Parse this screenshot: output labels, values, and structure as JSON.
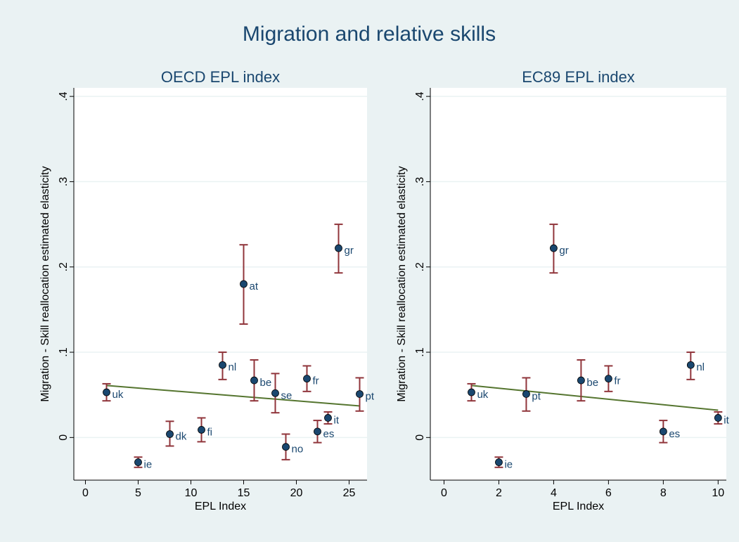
{
  "title": "Migration and relative skills",
  "chart_data": [
    {
      "type": "scatter",
      "subtitle": "OECD EPL index",
      "xlabel": "EPL Index",
      "ylabel": "Migration - Skill reallocation estimated elasticity",
      "x": [
        2,
        5,
        8,
        11,
        13,
        15,
        16,
        18,
        19,
        21,
        22,
        23,
        24,
        26
      ],
      "values": [
        0.053,
        -0.029,
        0.004,
        0.009,
        0.085,
        0.18,
        0.067,
        0.052,
        -0.011,
        0.069,
        0.007,
        0.023,
        0.222,
        0.051
      ],
      "ci_low": [
        0.043,
        -0.035,
        -0.01,
        -0.005,
        0.068,
        0.133,
        0.043,
        0.029,
        -0.026,
        0.054,
        -0.006,
        0.016,
        0.193,
        0.031
      ],
      "ci_high": [
        0.063,
        -0.023,
        0.019,
        0.023,
        0.1,
        0.226,
        0.091,
        0.075,
        0.004,
        0.084,
        0.02,
        0.03,
        0.25,
        0.07
      ],
      "labels": [
        "uk",
        "ie",
        "dk",
        "fi",
        "nl",
        "at",
        "be",
        "se",
        "no",
        "fr",
        "es",
        "it",
        "gr",
        "pt"
      ],
      "fit_line": {
        "x": [
          2,
          26
        ],
        "values": [
          0.061,
          0.037
        ],
        "color": "#55752f"
      },
      "xlim": [
        -1.1,
        26.7
      ],
      "ylim": [
        -0.05,
        0.41
      ],
      "xticks": [
        0,
        5,
        10,
        15,
        20,
        25
      ],
      "yticks": [
        0,
        {
          "value": 0.1,
          "label": ".1"
        },
        {
          "value": 0.2,
          "label": ".2"
        },
        {
          "value": 0.3,
          "label": ".3"
        },
        {
          "value": 0.4,
          "label": ".4"
        }
      ],
      "grid": true,
      "marker_color": "#1a476f",
      "ci_color": "#90353b",
      "label_color": "#1a476f"
    },
    {
      "type": "scatter",
      "subtitle": "EC89 EPL index",
      "xlabel": "EPL Index",
      "ylabel": "Migration - Skill reallocation estimated elasticity",
      "x": [
        1,
        2,
        3,
        4,
        5,
        6,
        8,
        9,
        10
      ],
      "values": [
        0.053,
        -0.029,
        0.051,
        0.222,
        0.067,
        0.069,
        0.007,
        0.085,
        0.023
      ],
      "ci_low": [
        0.043,
        -0.035,
        0.031,
        0.193,
        0.043,
        0.054,
        -0.006,
        0.068,
        0.016
      ],
      "ci_high": [
        0.063,
        -0.023,
        0.07,
        0.25,
        0.091,
        0.084,
        0.02,
        0.1,
        0.03
      ],
      "labels": [
        "uk",
        "ie",
        "pt",
        "gr",
        "be",
        "fr",
        "es",
        "nl",
        "it"
      ],
      "fit_line": {
        "x": [
          1,
          10
        ],
        "values": [
          0.061,
          0.032
        ],
        "color": "#55752f"
      },
      "xlim": [
        -0.5,
        10.3
      ],
      "ylim": [
        -0.05,
        0.41
      ],
      "xticks": [
        0,
        2,
        4,
        6,
        8,
        10
      ],
      "yticks": [
        0,
        {
          "value": 0.1,
          "label": ".1"
        },
        {
          "value": 0.2,
          "label": ".2"
        },
        {
          "value": 0.3,
          "label": ".3"
        },
        {
          "value": 0.4,
          "label": ".4"
        }
      ],
      "grid": true,
      "marker_color": "#1a476f",
      "ci_color": "#90353b",
      "label_color": "#1a476f"
    }
  ]
}
